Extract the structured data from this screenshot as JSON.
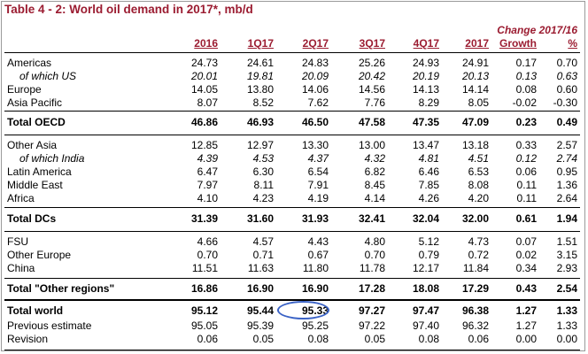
{
  "title": "Table 4 - 2: World oil demand in 2017*, mb/d",
  "change_header": "Change 2017/16",
  "columns": [
    "2016",
    "1Q17",
    "2Q17",
    "3Q17",
    "4Q17",
    "2017",
    "Growth",
    "%"
  ],
  "rows": [
    {
      "label": "Americas",
      "style": "normal",
      "values": [
        "24.73",
        "24.61",
        "24.83",
        "25.26",
        "24.93",
        "24.91",
        "0.17",
        "0.70"
      ]
    },
    {
      "label": "of which US",
      "style": "italic",
      "values": [
        "20.01",
        "19.81",
        "20.09",
        "20.42",
        "20.19",
        "20.13",
        "0.13",
        "0.63"
      ]
    },
    {
      "label": "Europe",
      "style": "normal",
      "values": [
        "14.05",
        "13.80",
        "14.06",
        "14.56",
        "14.13",
        "14.14",
        "0.08",
        "0.60"
      ]
    },
    {
      "label": "Asia Pacific",
      "style": "normal",
      "values": [
        "8.07",
        "8.52",
        "7.62",
        "7.76",
        "8.29",
        "8.05",
        "-0.02",
        "-0.30"
      ]
    },
    {
      "label": "Total OECD",
      "style": "bold",
      "values": [
        "46.86",
        "46.93",
        "46.50",
        "47.58",
        "47.35",
        "47.09",
        "0.23",
        "0.49"
      ]
    },
    {
      "label": "Other Asia",
      "style": "normal",
      "values": [
        "12.85",
        "12.97",
        "13.30",
        "13.00",
        "13.47",
        "13.18",
        "0.33",
        "2.57"
      ]
    },
    {
      "label": "of which India",
      "style": "italic",
      "values": [
        "4.39",
        "4.53",
        "4.37",
        "4.32",
        "4.81",
        "4.51",
        "0.12",
        "2.74"
      ]
    },
    {
      "label": "Latin America",
      "style": "normal",
      "values": [
        "6.47",
        "6.30",
        "6.54",
        "6.82",
        "6.46",
        "6.53",
        "0.06",
        "0.95"
      ]
    },
    {
      "label": "Middle East",
      "style": "normal",
      "values": [
        "7.97",
        "8.11",
        "7.91",
        "8.45",
        "7.85",
        "8.08",
        "0.11",
        "1.36"
      ]
    },
    {
      "label": "Africa",
      "style": "normal",
      "values": [
        "4.10",
        "4.23",
        "4.19",
        "4.14",
        "4.26",
        "4.20",
        "0.11",
        "2.64"
      ]
    },
    {
      "label": "Total DCs",
      "style": "bold",
      "values": [
        "31.39",
        "31.60",
        "31.93",
        "32.41",
        "32.04",
        "32.00",
        "0.61",
        "1.94"
      ]
    },
    {
      "label": "FSU",
      "style": "normal",
      "values": [
        "4.66",
        "4.57",
        "4.43",
        "4.80",
        "5.12",
        "4.73",
        "0.07",
        "1.51"
      ]
    },
    {
      "label": "Other Europe",
      "style": "normal",
      "values": [
        "0.70",
        "0.71",
        "0.67",
        "0.70",
        "0.79",
        "0.72",
        "0.02",
        "3.15"
      ]
    },
    {
      "label": "China",
      "style": "normal",
      "values": [
        "11.51",
        "11.63",
        "11.80",
        "11.78",
        "12.17",
        "11.84",
        "0.34",
        "2.93"
      ]
    },
    {
      "label": "Total \"Other regions\"",
      "style": "bold",
      "values": [
        "16.86",
        "16.90",
        "16.90",
        "17.28",
        "18.08",
        "17.29",
        "0.43",
        "2.54"
      ]
    },
    {
      "label": "Total world",
      "style": "bold",
      "values": [
        "95.12",
        "95.44",
        "95.33",
        "97.27",
        "97.47",
        "96.38",
        "1.27",
        "1.33"
      ]
    },
    {
      "label": "Previous estimate",
      "style": "normal",
      "values": [
        "95.05",
        "95.39",
        "95.25",
        "97.22",
        "97.40",
        "96.32",
        "1.27",
        "1.33"
      ]
    },
    {
      "label": "Revision",
      "style": "normal",
      "values": [
        "0.06",
        "0.05",
        "0.08",
        "0.05",
        "0.08",
        "0.06",
        "0.00",
        "0.00"
      ]
    }
  ],
  "highlight": {
    "row": 15,
    "column": 2,
    "color": "#3a62c6"
  }
}
